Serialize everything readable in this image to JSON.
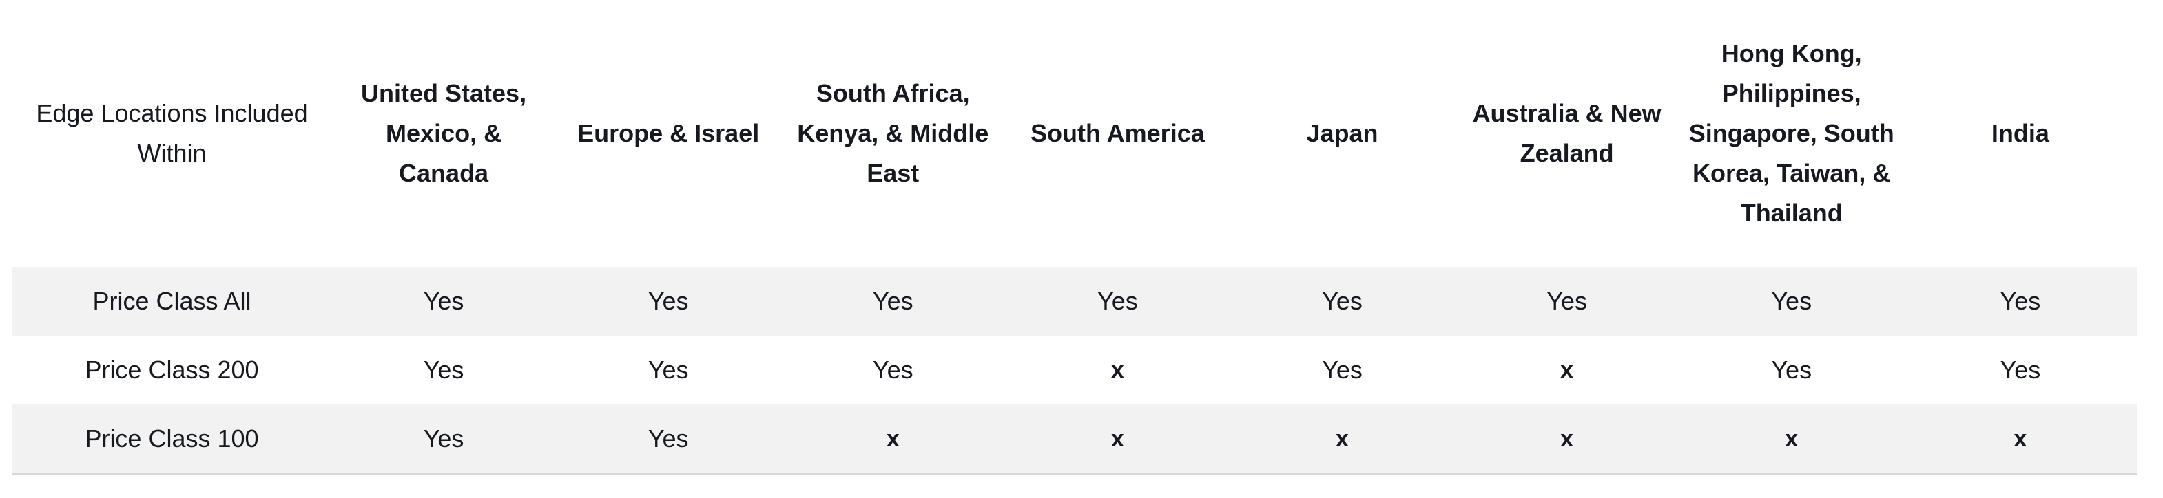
{
  "table": {
    "corner_header": "Edge Locations Included Within",
    "columns": [
      "United States, Mexico, & Canada",
      "Europe & Israel",
      "South Africa, Kenya, & Middle East",
      "South America",
      "Japan",
      "Australia & New Zealand",
      "Hong Kong, Philippines, Singapore, South Korea, Taiwan, & Thailand",
      "India"
    ],
    "rows": [
      {
        "label": "Price Class All",
        "cells": [
          "Yes",
          "Yes",
          "Yes",
          "Yes",
          "Yes",
          "Yes",
          "Yes",
          "Yes"
        ]
      },
      {
        "label": "Price Class 200",
        "cells": [
          "Yes",
          "Yes",
          "Yes",
          "x",
          "Yes",
          "x",
          "Yes",
          "Yes"
        ]
      },
      {
        "label": "Price Class 100",
        "cells": [
          "Yes",
          "Yes",
          "x",
          "x",
          "x",
          "x",
          "x",
          "x"
        ]
      }
    ]
  }
}
